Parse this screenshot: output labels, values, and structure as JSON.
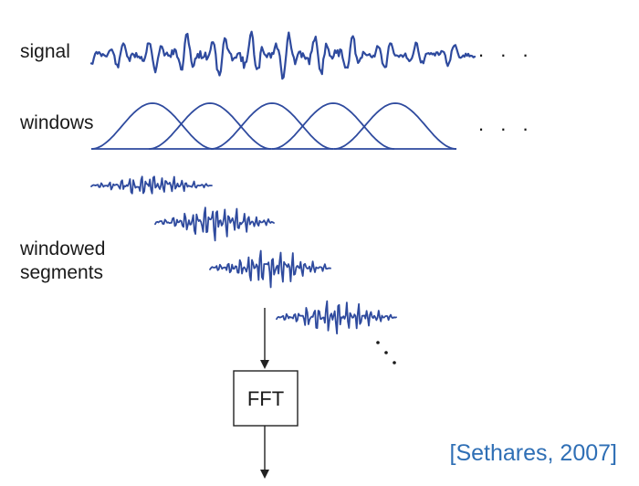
{
  "labels": {
    "signal": "signal",
    "windows": "windows",
    "windowed_line1": "windowed",
    "windowed_line2": "segments",
    "fft": "FFT",
    "citation": "[Sethares, 2007]"
  },
  "ellipsis": ". . .",
  "colors": {
    "wave": "#2e4a9e",
    "text": "#1a1a1a",
    "citation": "#2f6fb5",
    "stroke": "#222222"
  },
  "window_count": 5
}
